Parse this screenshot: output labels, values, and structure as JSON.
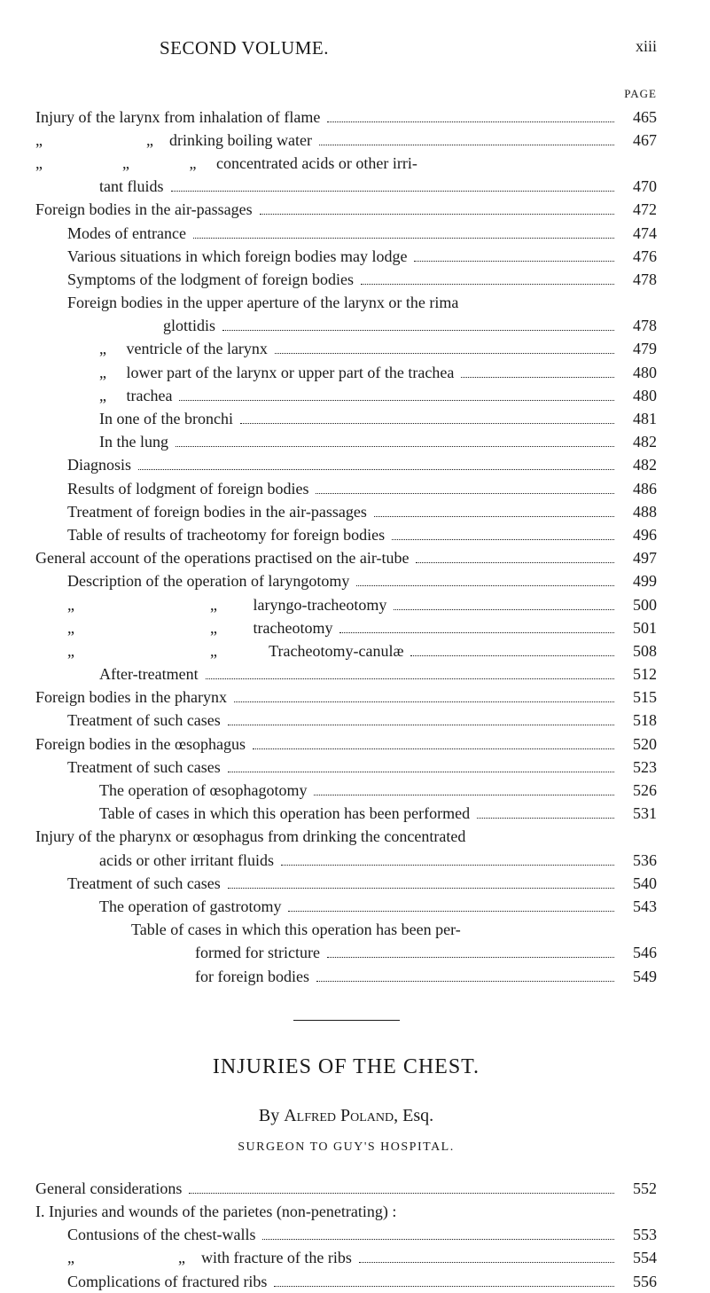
{
  "header": {
    "title": "SECOND VOLUME.",
    "roman": "xiii"
  },
  "pageLabel": "PAGE",
  "toc": [
    {
      "text": "Injury of the larynx from inhalation of flame",
      "page": "465",
      "indent": 0
    },
    {
      "text": "„                          „    drinking boiling water",
      "page": "467",
      "indent": 0
    },
    {
      "text": "„                    „               „     concentrated acids or other irri-",
      "page": "",
      "indent": 0,
      "nopage": true
    },
    {
      "text": "tant fluids",
      "page": "470",
      "indent": 2
    },
    {
      "text": "Foreign bodies in the air-passages",
      "page": "472",
      "indent": 0
    },
    {
      "text": "Modes of entrance",
      "page": "474",
      "indent": 1
    },
    {
      "text": "Various situations in which foreign bodies may lodge",
      "page": "476",
      "indent": 1
    },
    {
      "text": "Symptoms of the lodgment of foreign bodies",
      "page": "478",
      "indent": 1
    },
    {
      "text": "Foreign bodies in the upper aperture of the larynx or the rima",
      "page": "",
      "indent": 1,
      "nopage": true
    },
    {
      "text": "glottidis",
      "page": "478",
      "indent": 4
    },
    {
      "text": "„     ventricle of the larynx",
      "page": "479",
      "indent": 2
    },
    {
      "text": "„     lower part of the larynx or upper part of the trachea",
      "page": "480",
      "indent": 2
    },
    {
      "text": "„     trachea",
      "page": "480",
      "indent": 2
    },
    {
      "text": "In one of the bronchi",
      "page": "481",
      "indent": 2
    },
    {
      "text": "In the lung",
      "page": "482",
      "indent": 2
    },
    {
      "text": "Diagnosis",
      "page": "482",
      "indent": 1
    },
    {
      "text": "Results of lodgment of foreign bodies",
      "page": "486",
      "indent": 1
    },
    {
      "text": "Treatment of foreign bodies in the air-passages",
      "page": "488",
      "indent": 1
    },
    {
      "text": "Table of results of tracheotomy for foreign bodies",
      "page": "496",
      "indent": 1
    },
    {
      "text": "General account of the operations practised on the air-tube",
      "page": "497",
      "indent": 0
    },
    {
      "text": "Description of the operation of laryngotomy",
      "page": "499",
      "indent": 1
    },
    {
      "text": "„                                  „         laryngo-tracheotomy",
      "page": "500",
      "indent": 1
    },
    {
      "text": "„                                  „         tracheotomy",
      "page": "501",
      "indent": 1
    },
    {
      "text": "„                                  „             Tracheotomy-canulæ",
      "page": "508",
      "indent": 1
    },
    {
      "text": "After-treatment",
      "page": "512",
      "indent": 2
    },
    {
      "text": "Foreign bodies in the pharynx",
      "page": "515",
      "indent": 0
    },
    {
      "text": "Treatment of such cases",
      "page": "518",
      "indent": 1
    },
    {
      "text": "Foreign bodies in the œsophagus",
      "page": "520",
      "indent": 0
    },
    {
      "text": "Treatment of such cases",
      "page": "523",
      "indent": 1
    },
    {
      "text": "The operation of œsophagotomy",
      "page": "526",
      "indent": 2
    },
    {
      "text": "Table of cases in which this operation has been performed",
      "page": "531",
      "indent": 2
    },
    {
      "text": "Injury of the pharynx or œsophagus from drinking the concentrated",
      "page": "",
      "indent": 0,
      "nopage": true
    },
    {
      "text": "acids or other irritant fluids",
      "page": "536",
      "indent": 2
    },
    {
      "text": "Treatment of such cases",
      "page": "540",
      "indent": 1
    },
    {
      "text": "The operation of gastrotomy",
      "page": "543",
      "indent": 2
    },
    {
      "text": "Table of cases in which this operation has been per-",
      "page": "",
      "indent": 3,
      "nopage": true
    },
    {
      "text": "formed for stricture",
      "page": "546",
      "indent": 5
    },
    {
      "text": "for foreign bodies",
      "page": "549",
      "indent": 5
    }
  ],
  "section": {
    "title": "INJURIES OF THE CHEST.",
    "by": "By",
    "author": "Alfred Poland,",
    "honorific": "Esq.",
    "subtitle": "SURGEON TO GUY'S HOSPITAL."
  },
  "toc2": [
    {
      "text": "General considerations",
      "page": "552",
      "indent": 0
    },
    {
      "text": "I. Injuries and wounds of the parietes (non-penetrating) :",
      "page": "",
      "indent": 0,
      "nopage": true
    },
    {
      "text": "Contusions of the chest-walls",
      "page": "553",
      "indent": 1
    },
    {
      "text": "„                          „    with fracture of the ribs",
      "page": "554",
      "indent": 1
    },
    {
      "text": "Complications of fractured ribs",
      "page": "556",
      "indent": 1
    }
  ]
}
